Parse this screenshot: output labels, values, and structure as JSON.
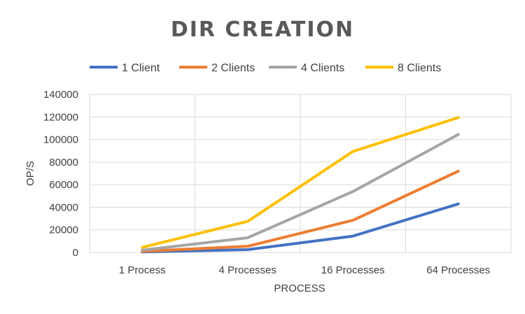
{
  "chart_data": {
    "type": "line",
    "title": "DIR CREATION",
    "xlabel": "PROCESS",
    "ylabel": "OP/S",
    "categories": [
      "1 Process",
      "4 Processes",
      "16 Processes",
      "64 Processes"
    ],
    "ylim": [
      0,
      140000
    ],
    "yticks": [
      "0",
      "20000",
      "40000",
      "60000",
      "80000",
      "100000",
      "120000",
      "140000"
    ],
    "grid": true,
    "legend_position": "top",
    "series": [
      {
        "name": "1 Client",
        "color": "#4472C4",
        "values": [
          500,
          2500,
          14500,
          43000
        ]
      },
      {
        "name": "2 Clients",
        "color": "#ED7D31",
        "values": [
          1000,
          5500,
          28500,
          72000
        ]
      },
      {
        "name": "4 Clients",
        "color": "#A5A5A5",
        "values": [
          2000,
          13000,
          54000,
          104500
        ]
      },
      {
        "name": "8 Clients",
        "color": "#FFC000",
        "values": [
          4500,
          27500,
          89500,
          119500
        ]
      }
    ]
  }
}
